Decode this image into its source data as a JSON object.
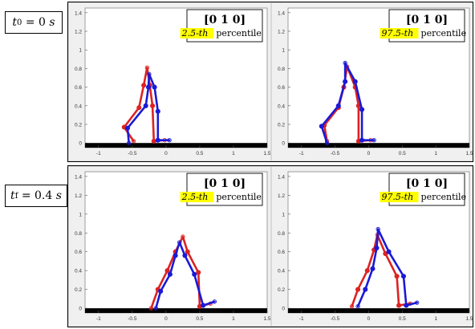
{
  "rows": [
    {
      "time_label": "t0 = 0 s",
      "time_sym": "t",
      "time_sub": "0",
      "time_rest": " = 0 ",
      "time_unit": "s"
    },
    {
      "time_label": "tf = 0.4 s",
      "time_sym": "t",
      "time_sub": "f",
      "time_rest": " = 0.4 ",
      "time_unit": "s"
    }
  ],
  "colors": {
    "red": "#dd2222",
    "blue": "#1a1ad6",
    "ground": "#000000",
    "highlight": "#ffff00",
    "axes_bg": "#ffffff",
    "figure_bg": "#f0f0f0"
  },
  "chart_data": [
    {
      "type": "line",
      "panel": "top-left",
      "annotation": {
        "vector": "[0 1 0]",
        "percentile_value": "2.5-th",
        "percentile_word": "percentile"
      },
      "xlim": [
        -1.2,
        1.5
      ],
      "ylim": [
        -0.05,
        1.45
      ],
      "xticks": [
        -1,
        -0.5,
        0,
        0.5,
        1,
        1.5
      ],
      "yticks": [
        0,
        0.2,
        0.4,
        0.6,
        0.8,
        1,
        1.2,
        1.4
      ],
      "series": [
        {
          "color": "red",
          "x": [
            -0.48,
            -0.62,
            -0.4,
            -0.33,
            -0.28,
            -0.24,
            -0.2,
            -0.18,
            -0.02
          ],
          "y": [
            0.02,
            0.17,
            0.38,
            0.62,
            0.81,
            0.62,
            0.4,
            0.02,
            0.03
          ]
        },
        {
          "color": "blue",
          "x": [
            -0.55,
            -0.57,
            -0.3,
            -0.26,
            -0.25,
            -0.17,
            -0.12,
            -0.12,
            0.05
          ],
          "y": [
            0.0,
            0.16,
            0.4,
            0.6,
            0.74,
            0.6,
            0.34,
            0.03,
            0.03
          ]
        }
      ],
      "ground": {
        "x": [
          -1.2,
          1.5
        ],
        "y": [
          -0.05,
          0.0
        ]
      }
    },
    {
      "type": "line",
      "panel": "top-right",
      "annotation": {
        "vector": "[0 1 0]",
        "percentile_value": "97.5-th",
        "percentile_word": "percentile"
      },
      "xlim": [
        -1.2,
        1.5
      ],
      "ylim": [
        -0.05,
        1.45
      ],
      "xticks": [
        -1,
        -0.5,
        0,
        0.5,
        1,
        1.5
      ],
      "yticks": [
        0,
        0.2,
        0.4,
        0.6,
        0.8,
        1,
        1.2,
        1.4
      ],
      "series": [
        {
          "color": "red",
          "x": [
            -0.62,
            -0.66,
            -0.45,
            -0.37,
            -0.32,
            -0.2,
            -0.15,
            -0.15,
            0.03
          ],
          "y": [
            0.02,
            0.19,
            0.38,
            0.6,
            0.82,
            0.6,
            0.4,
            0.02,
            0.03
          ]
        },
        {
          "color": "blue",
          "x": [
            -0.62,
            -0.7,
            -0.45,
            -0.35,
            -0.35,
            -0.2,
            -0.1,
            -0.1,
            0.08
          ],
          "y": [
            0.0,
            0.18,
            0.4,
            0.66,
            0.86,
            0.66,
            0.36,
            0.03,
            0.03
          ]
        }
      ],
      "ground": {
        "x": [
          -1.2,
          1.5
        ],
        "y": [
          -0.05,
          0.0
        ]
      }
    },
    {
      "type": "line",
      "panel": "bottom-left",
      "annotation": {
        "vector": "[0 1 0]",
        "percentile_value": "2.5-th",
        "percentile_word": "percentile"
      },
      "xlim": [
        -1.2,
        1.5
      ],
      "ylim": [
        -0.05,
        1.45
      ],
      "xticks": [
        -1,
        -0.5,
        0,
        0.5,
        1,
        1.5
      ],
      "yticks": [
        0,
        0.2,
        0.4,
        0.6,
        0.8,
        1,
        1.2,
        1.4
      ],
      "series": [
        {
          "color": "red",
          "x": [
            -0.22,
            -0.12,
            0.02,
            0.14,
            0.25,
            0.32,
            0.48,
            0.5,
            0.66
          ],
          "y": [
            0.0,
            0.2,
            0.4,
            0.6,
            0.76,
            0.6,
            0.38,
            0.02,
            0.05
          ]
        },
        {
          "color": "blue",
          "x": [
            -0.15,
            -0.08,
            0.06,
            0.14,
            0.2,
            0.28,
            0.42,
            0.55,
            0.72
          ],
          "y": [
            0.0,
            0.18,
            0.36,
            0.56,
            0.7,
            0.56,
            0.36,
            0.03,
            0.07
          ]
        }
      ],
      "ground": {
        "x": [
          -1.2,
          1.5
        ],
        "y": [
          -0.05,
          0.0
        ]
      }
    },
    {
      "type": "line",
      "panel": "bottom-right",
      "annotation": {
        "vector": "[0 1 0]",
        "percentile_value": "97.5-th",
        "percentile_word": "percentile"
      },
      "xlim": [
        -1.2,
        1.5
      ],
      "ylim": [
        -0.05,
        1.45
      ],
      "xticks": [
        -1,
        -0.5,
        0,
        0.5,
        1,
        1.5
      ],
      "yticks": [
        0,
        0.2,
        0.4,
        0.6,
        0.8,
        1,
        1.2,
        1.4
      ],
      "series": [
        {
          "color": "red",
          "x": [
            -0.25,
            -0.16,
            -0.02,
            0.08,
            0.13,
            0.25,
            0.42,
            0.45,
            0.62
          ],
          "y": [
            0.02,
            0.2,
            0.4,
            0.62,
            0.78,
            0.58,
            0.34,
            0.03,
            0.05
          ]
        },
        {
          "color": "blue",
          "x": [
            -0.16,
            -0.05,
            0.06,
            0.12,
            0.14,
            0.3,
            0.52,
            0.56,
            0.72
          ],
          "y": [
            0.02,
            0.2,
            0.42,
            0.64,
            0.84,
            0.6,
            0.34,
            0.03,
            0.06
          ]
        }
      ],
      "ground": {
        "x": [
          -1.2,
          1.5
        ],
        "y": [
          -0.05,
          0.0
        ]
      }
    }
  ]
}
